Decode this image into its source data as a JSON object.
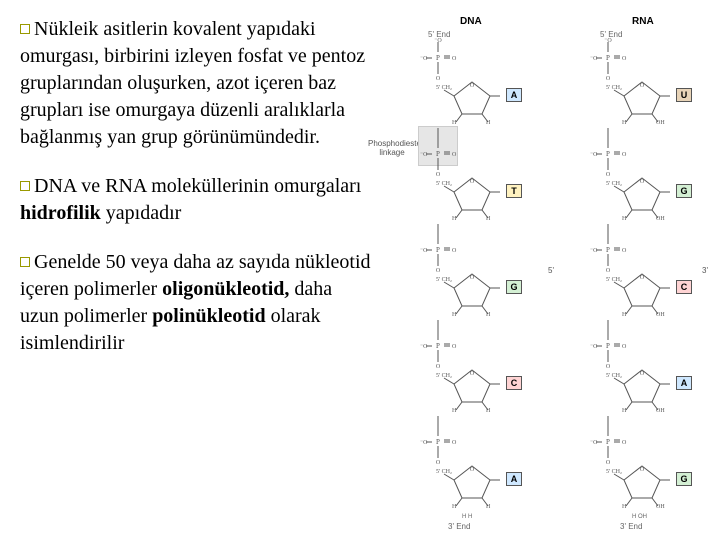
{
  "paragraphs": {
    "p1": "Nükleik asitlerin kovalent yapıdaki omurgası, birbirini izleyen fosfat ve pentoz gruplarından oluşurken, azot içeren baz grupları ise omurgaya düzenli aralıklarla bağlanmış yan grup görünümündedir.",
    "p2_a": "DNA ve RNA moleküllerinin omurgaları ",
    "p2_b": "hidrofilik",
    "p2_c": " yapıdadır",
    "p3_a": "Genelde 50 veya daha az sayıda nükleotid içeren polimerler ",
    "p3_b": "oligonükleotid,",
    "p3_c": " daha uzun polimerler ",
    "p3_d": "polinükleotid",
    "p3_e": " olarak isimlendirilir"
  },
  "diagram": {
    "col1_label": "DNA",
    "col2_label": "RNA",
    "end5": "5' End",
    "end3": "3' End",
    "phosphodiester": "Phosphodiester\nlinkage",
    "prime5": "5'",
    "prime3": "3'",
    "dna_bases": [
      "A",
      "T",
      "G",
      "C",
      "A"
    ],
    "rna_bases": [
      "U",
      "G",
      "C",
      "A",
      "G"
    ],
    "colors": {
      "A": "#cfe8ff",
      "T": "#fff2c0",
      "G": "#d4f0d4",
      "C": "#ffd4d4",
      "U": "#e8d4b8"
    },
    "atom_labels": {
      "ch2": "CH₂",
      "h": "H",
      "oh": "OH",
      "o": "O",
      "p": "P",
      "fiveprime": "5'",
      "threeprime": "3'",
      "twoprime": "2'",
      "oneprime": "1'"
    }
  }
}
